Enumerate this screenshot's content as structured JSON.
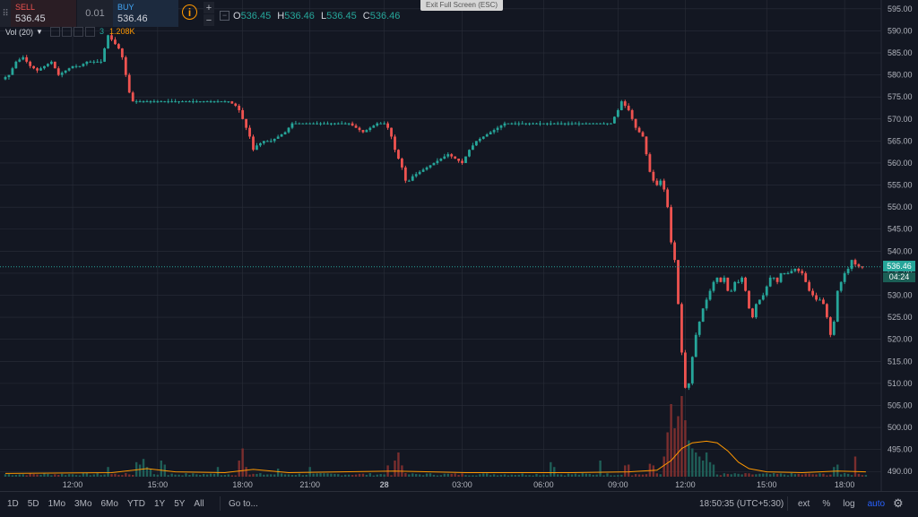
{
  "trade_panel": {
    "sell_label": "SELL",
    "sell_price": "536.45",
    "spread": "0.01",
    "buy_label": "BUY",
    "buy_price": "536.46",
    "info_icon": "i",
    "plus": "+",
    "minus": "−"
  },
  "ohlc": {
    "o_label": "O",
    "o": "536.45",
    "h_label": "H",
    "h": "536.46",
    "l_label": "L",
    "l": "536.45",
    "c_label": "C",
    "c": "536.46"
  },
  "exit_fullscreen": "Exit Full Screen (ESC)",
  "volume_indicator": {
    "label": "Vol (20)",
    "value_count": "3",
    "ma_value": "1.208K"
  },
  "price_axis": {
    "ticks": [
      "595.00",
      "590.00",
      "585.00",
      "580.00",
      "575.00",
      "570.00",
      "565.00",
      "560.00",
      "555.00",
      "550.00",
      "545.00",
      "540.00",
      "535.00",
      "530.00",
      "525.00",
      "520.00",
      "515.00",
      "510.00",
      "505.00",
      "500.00",
      "495.00",
      "490.00"
    ],
    "current_price": "536.46",
    "countdown": "04:24"
  },
  "time_axis": {
    "ticks": [
      "12:00",
      "15:00",
      "18:00",
      "21:00",
      "28",
      "03:00",
      "06:00",
      "09:00",
      "12:00",
      "15:00",
      "18:00"
    ]
  },
  "bottom_bar": {
    "periods": [
      "1D",
      "5D",
      "1Mo",
      "3Mo",
      "6Mo",
      "YTD",
      "1Y",
      "5Y",
      "All"
    ],
    "goto": "Go to...",
    "time": "18:50:35 (UTC+5:30)",
    "options": [
      "ext",
      "%",
      "log",
      "auto"
    ],
    "active_option": "auto"
  },
  "colors": {
    "background": "#131722",
    "up": "#26a69a",
    "down": "#ef5350",
    "grid": "#2a2e39",
    "volume_ma": "#ff9800"
  },
  "chart_data": {
    "type": "candlestick",
    "ylim": [
      487,
      597
    ],
    "price_path": [
      [
        0,
        579
      ],
      [
        2,
        580
      ],
      [
        4,
        583
      ],
      [
        6,
        584
      ],
      [
        8,
        582
      ],
      [
        10,
        581
      ],
      [
        12,
        582
      ],
      [
        14,
        583
      ],
      [
        16,
        580
      ],
      [
        18,
        581
      ],
      [
        20,
        582
      ],
      [
        22,
        582
      ],
      [
        24,
        583
      ],
      [
        26,
        583
      ],
      [
        28,
        583
      ],
      [
        30,
        589
      ],
      [
        31,
        588
      ],
      [
        32,
        587
      ],
      [
        33,
        586
      ],
      [
        34,
        584
      ],
      [
        35,
        580
      ],
      [
        36,
        576
      ],
      [
        37,
        574
      ],
      [
        38,
        574
      ],
      [
        40,
        574
      ],
      [
        42,
        574
      ],
      [
        44,
        574
      ],
      [
        46,
        574
      ],
      [
        48,
        574
      ],
      [
        50,
        574
      ],
      [
        52,
        574
      ],
      [
        54,
        574
      ],
      [
        56,
        574
      ],
      [
        58,
        574
      ],
      [
        60,
        574
      ],
      [
        62,
        574
      ],
      [
        64,
        574
      ],
      [
        66,
        573
      ],
      [
        67,
        572
      ],
      [
        68,
        570
      ],
      [
        69,
        568
      ],
      [
        70,
        566
      ],
      [
        71,
        563
      ],
      [
        72,
        564
      ],
      [
        74,
        565
      ],
      [
        76,
        565
      ],
      [
        78,
        566
      ],
      [
        80,
        567
      ],
      [
        82,
        569
      ],
      [
        84,
        569
      ],
      [
        86,
        569
      ],
      [
        88,
        569
      ],
      [
        90,
        569
      ],
      [
        92,
        569
      ],
      [
        94,
        569
      ],
      [
        96,
        569
      ],
      [
        98,
        569
      ],
      [
        100,
        568
      ],
      [
        102,
        567
      ],
      [
        104,
        568
      ],
      [
        106,
        569
      ],
      [
        108,
        569
      ],
      [
        109,
        568
      ],
      [
        110,
        566
      ],
      [
        111,
        563
      ],
      [
        112,
        561
      ],
      [
        113,
        559
      ],
      [
        114,
        556
      ],
      [
        115,
        556
      ],
      [
        116,
        557
      ],
      [
        118,
        558
      ],
      [
        120,
        559
      ],
      [
        122,
        560
      ],
      [
        124,
        561
      ],
      [
        126,
        562
      ],
      [
        128,
        561
      ],
      [
        130,
        560
      ],
      [
        132,
        563
      ],
      [
        134,
        565
      ],
      [
        136,
        566
      ],
      [
        138,
        567
      ],
      [
        140,
        568
      ],
      [
        142,
        569
      ],
      [
        144,
        569
      ],
      [
        146,
        569
      ],
      [
        148,
        569
      ],
      [
        150,
        569
      ],
      [
        152,
        569
      ],
      [
        154,
        569
      ],
      [
        156,
        569
      ],
      [
        158,
        569
      ],
      [
        160,
        569
      ],
      [
        162,
        569
      ],
      [
        164,
        569
      ],
      [
        166,
        569
      ],
      [
        168,
        569
      ],
      [
        170,
        569
      ],
      [
        172,
        569
      ],
      [
        174,
        572
      ],
      [
        175,
        574
      ],
      [
        176,
        573
      ],
      [
        177,
        572
      ],
      [
        178,
        570
      ],
      [
        179,
        568
      ],
      [
        180,
        567
      ],
      [
        181,
        566
      ],
      [
        182,
        562
      ],
      [
        183,
        558
      ],
      [
        184,
        556
      ],
      [
        185,
        555
      ],
      [
        186,
        556
      ],
      [
        187,
        554
      ],
      [
        188,
        550
      ],
      [
        189,
        542
      ],
      [
        190,
        538
      ],
      [
        191,
        528
      ],
      [
        192,
        517
      ],
      [
        193,
        509
      ],
      [
        194,
        510
      ],
      [
        195,
        516
      ],
      [
        196,
        521
      ],
      [
        197,
        524
      ],
      [
        198,
        527
      ],
      [
        199,
        529
      ],
      [
        200,
        531
      ],
      [
        201,
        533
      ],
      [
        202,
        534
      ],
      [
        203,
        533
      ],
      [
        204,
        534
      ],
      [
        205,
        531
      ],
      [
        206,
        531
      ],
      [
        207,
        533
      ],
      [
        208,
        533
      ],
      [
        209,
        534
      ],
      [
        210,
        531
      ],
      [
        211,
        527
      ],
      [
        212,
        525
      ],
      [
        213,
        528
      ],
      [
        214,
        529
      ],
      [
        215,
        530
      ],
      [
        216,
        532
      ],
      [
        217,
        534
      ],
      [
        218,
        534
      ],
      [
        219,
        533
      ],
      [
        220,
        535
      ],
      [
        222,
        535
      ],
      [
        224,
        536
      ],
      [
        226,
        535
      ],
      [
        227,
        533
      ],
      [
        228,
        531
      ],
      [
        229,
        530
      ],
      [
        230,
        529
      ],
      [
        231,
        529
      ],
      [
        232,
        528
      ],
      [
        233,
        525
      ],
      [
        234,
        521
      ],
      [
        235,
        524
      ],
      [
        236,
        531
      ],
      [
        237,
        533
      ],
      [
        238,
        535
      ],
      [
        239,
        536
      ],
      [
        240,
        538
      ],
      [
        241,
        537
      ],
      [
        242,
        536.5
      ],
      [
        243,
        536.46
      ]
    ],
    "volume": {
      "spikes": [
        {
          "candle": 29,
          "value": 0.12
        },
        {
          "candle": 37,
          "value": 0.18
        },
        {
          "candle": 38,
          "value": 0.15
        },
        {
          "candle": 39,
          "value": 0.22
        },
        {
          "candle": 40,
          "value": 0.12
        },
        {
          "candle": 41,
          "value": 0.1
        },
        {
          "candle": 44,
          "value": 0.2
        },
        {
          "candle": 45,
          "value": 0.15
        },
        {
          "candle": 60,
          "value": 0.12
        },
        {
          "candle": 66,
          "value": 0.2
        },
        {
          "candle": 67,
          "value": 0.35
        },
        {
          "candle": 68,
          "value": 0.12
        },
        {
          "candle": 77,
          "value": 0.1
        },
        {
          "candle": 86,
          "value": 0.12
        },
        {
          "candle": 108,
          "value": 0.14
        },
        {
          "candle": 110,
          "value": 0.2
        },
        {
          "candle": 111,
          "value": 0.3
        },
        {
          "candle": 112,
          "value": 0.14
        },
        {
          "candle": 154,
          "value": 0.18
        },
        {
          "candle": 155,
          "value": 0.12
        },
        {
          "candle": 168,
          "value": 0.2
        },
        {
          "candle": 175,
          "value": 0.14
        },
        {
          "candle": 176,
          "value": 0.15
        },
        {
          "candle": 182,
          "value": 0.16
        },
        {
          "candle": 183,
          "value": 0.14
        },
        {
          "candle": 186,
          "value": 0.25
        },
        {
          "candle": 187,
          "value": 0.55
        },
        {
          "candle": 188,
          "value": 0.9
        },
        {
          "candle": 189,
          "value": 0.6
        },
        {
          "candle": 190,
          "value": 0.75
        },
        {
          "candle": 191,
          "value": 1.0
        },
        {
          "candle": 192,
          "value": 0.7
        },
        {
          "candle": 193,
          "value": 0.45
        },
        {
          "candle": 194,
          "value": 0.35
        },
        {
          "candle": 195,
          "value": 0.3
        },
        {
          "candle": 196,
          "value": 0.25
        },
        {
          "candle": 197,
          "value": 0.2
        },
        {
          "candle": 198,
          "value": 0.3
        },
        {
          "candle": 199,
          "value": 0.18
        },
        {
          "candle": 200,
          "value": 0.15
        },
        {
          "candle": 234,
          "value": 0.12
        },
        {
          "candle": 235,
          "value": 0.15
        },
        {
          "candle": 240,
          "value": 0.25
        }
      ],
      "ma": [
        [
          0,
          0.04
        ],
        [
          30,
          0.05
        ],
        [
          40,
          0.1
        ],
        [
          48,
          0.06
        ],
        [
          62,
          0.05
        ],
        [
          70,
          0.09
        ],
        [
          80,
          0.05
        ],
        [
          110,
          0.07
        ],
        [
          130,
          0.05
        ],
        [
          160,
          0.05
        ],
        [
          176,
          0.06
        ],
        [
          184,
          0.08
        ],
        [
          188,
          0.2
        ],
        [
          191,
          0.35
        ],
        [
          194,
          0.42
        ],
        [
          198,
          0.44
        ],
        [
          201,
          0.42
        ],
        [
          204,
          0.32
        ],
        [
          207,
          0.18
        ],
        [
          210,
          0.1
        ],
        [
          215,
          0.06
        ],
        [
          225,
          0.05
        ],
        [
          235,
          0.07
        ],
        [
          243,
          0.06
        ]
      ]
    },
    "time_tick_candles": [
      19,
      43,
      67,
      86,
      107,
      129,
      152,
      173,
      192,
      215,
      237
    ]
  }
}
